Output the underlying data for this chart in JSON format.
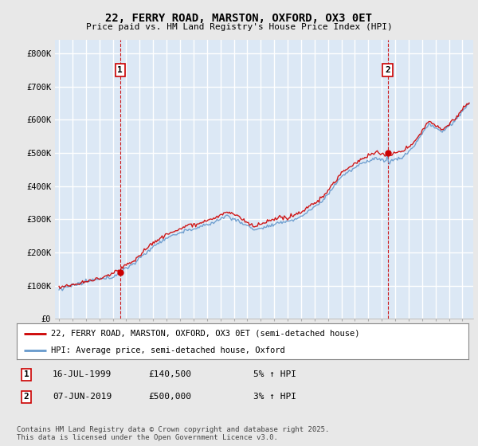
{
  "title": "22, FERRY ROAD, MARSTON, OXFORD, OX3 0ET",
  "subtitle": "Price paid vs. HM Land Registry's House Price Index (HPI)",
  "ylabel_ticks": [
    "£0",
    "£100K",
    "£200K",
    "£300K",
    "£400K",
    "£500K",
    "£600K",
    "£700K",
    "£800K"
  ],
  "ytick_values": [
    0,
    100000,
    200000,
    300000,
    400000,
    500000,
    600000,
    700000,
    800000
  ],
  "ylim": [
    0,
    840000
  ],
  "xlim_start": 1994.7,
  "xlim_end": 2025.8,
  "background_color": "#e8e8e8",
  "plot_background": "#dce8f5",
  "grid_color": "#ffffff",
  "line_color_property": "#cc0000",
  "line_color_hpi": "#6699cc",
  "ann1_x": 1999.54,
  "ann1_y": 140500,
  "ann1_label": "1",
  "ann2_x": 2019.44,
  "ann2_y": 500000,
  "ann2_label": "2",
  "legend_line1": "22, FERRY ROAD, MARSTON, OXFORD, OX3 0ET (semi-detached house)",
  "legend_line2": "HPI: Average price, semi-detached house, Oxford",
  "footer": "Contains HM Land Registry data © Crown copyright and database right 2025.\nThis data is licensed under the Open Government Licence v3.0.",
  "table_row1": [
    "1",
    "16-JUL-1999",
    "£140,500",
    "5% ↑ HPI"
  ],
  "table_row2": [
    "2",
    "07-JUN-2019",
    "£500,000",
    "3% ↑ HPI"
  ]
}
